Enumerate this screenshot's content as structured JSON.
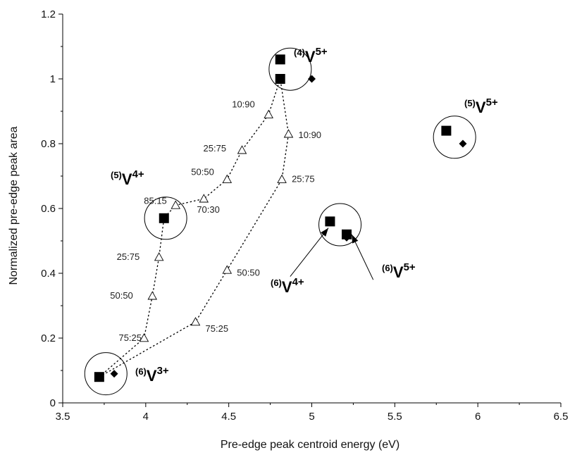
{
  "chart_data": {
    "type": "scatter",
    "title": "",
    "xlabel": "Pre-edge peak centroid energy (eV)",
    "ylabel": "Normalized pre-edge peak area",
    "xlim": [
      3.5,
      6.5
    ],
    "ylim": [
      0,
      1.2
    ],
    "x_ticks": [
      "3.5",
      "4",
      "4.5",
      "5",
      "5.5",
      "6",
      "6.5"
    ],
    "y_ticks": [
      "0",
      "0.2",
      "0.4",
      "0.6",
      "0.8",
      "1",
      "1.2"
    ],
    "grid": false,
    "references": [
      {
        "label": "(4)V5+",
        "squares": [
          [
            4.81,
            1.06
          ],
          [
            4.81,
            1.0
          ]
        ],
        "diamond": [
          5.0,
          1.0
        ],
        "circle": [
          4.87,
          1.03
        ]
      },
      {
        "label": "(5)V5+",
        "squares": [
          [
            5.81,
            0.84
          ]
        ],
        "diamond": [
          5.91,
          0.8
        ],
        "circle": [
          5.86,
          0.82
        ]
      },
      {
        "label": "(5)V4+",
        "squares": [
          [
            4.11,
            0.57
          ]
        ],
        "diamond": null,
        "circle": [
          4.12,
          0.57
        ]
      },
      {
        "label": "(6)V4+",
        "squares": [
          [
            5.11,
            0.56
          ]
        ],
        "diamond": null,
        "circle": [
          5.17,
          0.55
        ]
      },
      {
        "label": "(6)V5+",
        "squares": [
          [
            5.21,
            0.52
          ]
        ],
        "diamond": [
          5.21,
          0.51
        ],
        "circle": null
      },
      {
        "label": "(6)V3+",
        "squares": [
          [
            3.72,
            0.08
          ]
        ],
        "diamond": [
          3.81,
          0.09
        ],
        "circle": [
          3.76,
          0.09
        ]
      }
    ],
    "labels": {
      "v4_5": {
        "pre": "(4)",
        "main": "V",
        "sup": "5+"
      },
      "v5_5": {
        "pre": "(5)",
        "main": "V",
        "sup": "5+"
      },
      "v5_4": {
        "pre": "(5)",
        "main": "V",
        "sup": "4+"
      },
      "v6_4": {
        "pre": "(6)",
        "main": "V",
        "sup": "4+"
      },
      "v6_5": {
        "pre": "(6)",
        "main": "V",
        "sup": "5+"
      },
      "v6_3": {
        "pre": "(6)",
        "main": "V",
        "sup": "3+"
      }
    },
    "mixing_lines": [
      {
        "name": "",
        "points": [
          {
            "x": 3.72,
            "y": 0.08,
            "label": ""
          },
          {
            "x": 3.99,
            "y": 0.2,
            "label": "75:25"
          },
          {
            "x": 4.04,
            "y": 0.33,
            "label": "50:50"
          },
          {
            "x": 4.08,
            "y": 0.45,
            "label": "25:75"
          },
          {
            "x": 4.11,
            "y": 0.57,
            "label": ""
          },
          {
            "x": 4.18,
            "y": 0.61,
            "label": "85:15"
          },
          {
            "x": 4.35,
            "y": 0.63,
            "label": "70:30"
          },
          {
            "x": 4.49,
            "y": 0.69,
            "label": "50:50"
          },
          {
            "x": 4.58,
            "y": 0.78,
            "label": "25:75"
          },
          {
            "x": 4.74,
            "y": 0.89,
            "label": "10:90"
          },
          {
            "x": 4.81,
            "y": 1.0,
            "label": ""
          }
        ]
      },
      {
        "name": "",
        "points": [
          {
            "x": 3.72,
            "y": 0.08,
            "label": ""
          },
          {
            "x": 4.3,
            "y": 0.25,
            "label": "75:25"
          },
          {
            "x": 4.49,
            "y": 0.41,
            "label": "50:50"
          },
          {
            "x": 4.82,
            "y": 0.69,
            "label": "25:75"
          },
          {
            "x": 4.86,
            "y": 0.83,
            "label": "10:90"
          },
          {
            "x": 4.81,
            "y": 1.0,
            "label": ""
          }
        ]
      }
    ],
    "arrows": [
      {
        "from": [
          4.87,
          0.39
        ],
        "to": [
          5.1,
          0.54
        ]
      },
      {
        "from": [
          5.37,
          0.38
        ],
        "to": [
          5.24,
          0.52
        ]
      }
    ]
  }
}
